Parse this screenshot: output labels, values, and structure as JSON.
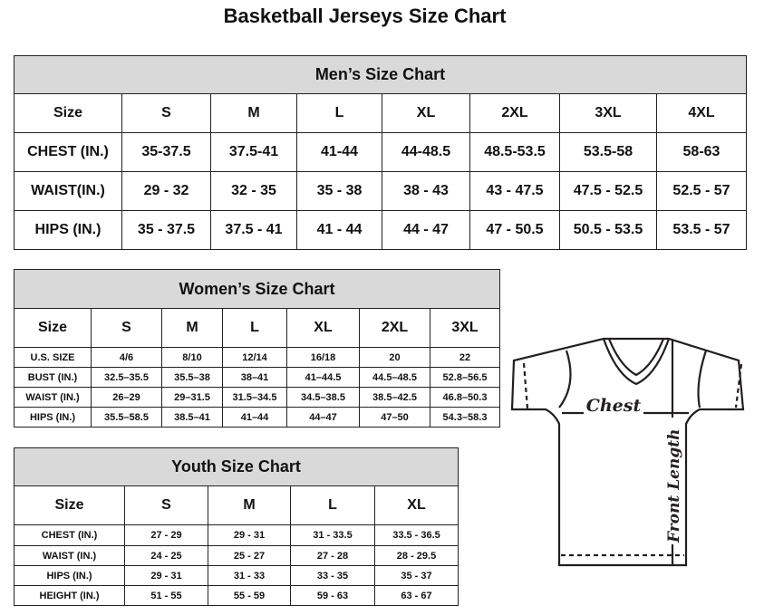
{
  "title": "Basketball Jerseys Size Chart",
  "men": {
    "title": "Men’s Size Chart",
    "rows": [
      [
        "Size",
        "S",
        "M",
        "L",
        "XL",
        "2XL",
        "3XL",
        "4XL"
      ],
      [
        "CHEST (IN.)",
        "35-37.5",
        "37.5-41",
        "41-44",
        "44-48.5",
        "48.5-53.5",
        "53.5-58",
        "58-63"
      ],
      [
        "WAIST(IN.)",
        "29 - 32",
        "32 - 35",
        "35 - 38",
        "38 - 43",
        "43 - 47.5",
        "47.5 - 52.5",
        "52.5 - 57"
      ],
      [
        "HIPS (IN.)",
        "35 - 37.5",
        "37.5 - 41",
        "41 - 44",
        "44 - 47",
        "47 - 50.5",
        "50.5 - 53.5",
        "53.5 - 57"
      ]
    ]
  },
  "women": {
    "title": "Women’s Size Chart",
    "rows": [
      [
        "Size",
        "S",
        "M",
        "L",
        "XL",
        "2XL",
        "3XL"
      ],
      [
        "U.S. SIZE",
        "4/6",
        "8/10",
        "12/14",
        "16/18",
        "20",
        "22"
      ],
      [
        "BUST (IN.)",
        "32.5–35.5",
        "35.5–38",
        "38–41",
        "41–44.5",
        "44.5–48.5",
        "52.8–56.5"
      ],
      [
        "WAIST (IN.)",
        "26–29",
        "29–31.5",
        "31.5–34.5",
        "34.5–38.5",
        "38.5–42.5",
        "46.8–50.3"
      ],
      [
        "HIPS (IN.)",
        "35.5–58.5",
        "38.5–41",
        "41–44",
        "44–47",
        "47–50",
        "54.3–58.3"
      ]
    ]
  },
  "youth": {
    "title": "Youth Size Chart",
    "rows": [
      [
        "Size",
        "S",
        "M",
        "L",
        "XL"
      ],
      [
        "CHEST (IN.)",
        "27 - 29",
        "29 - 31",
        "31 - 33.5",
        "33.5 - 36.5"
      ],
      [
        "WAIST (IN.)",
        "24 - 25",
        "25 - 27",
        "27 - 28",
        "28 - 29.5"
      ],
      [
        "HIPS (IN.)",
        "29 - 31",
        "31 - 33",
        "33 - 35",
        "35 - 37"
      ],
      [
        "HEIGHT (IN.)",
        "51 - 55",
        "55 - 59",
        "59 - 63",
        "63 - 67"
      ]
    ]
  },
  "diagram": {
    "chest_label": "Chest",
    "length_label": "Front Length"
  }
}
